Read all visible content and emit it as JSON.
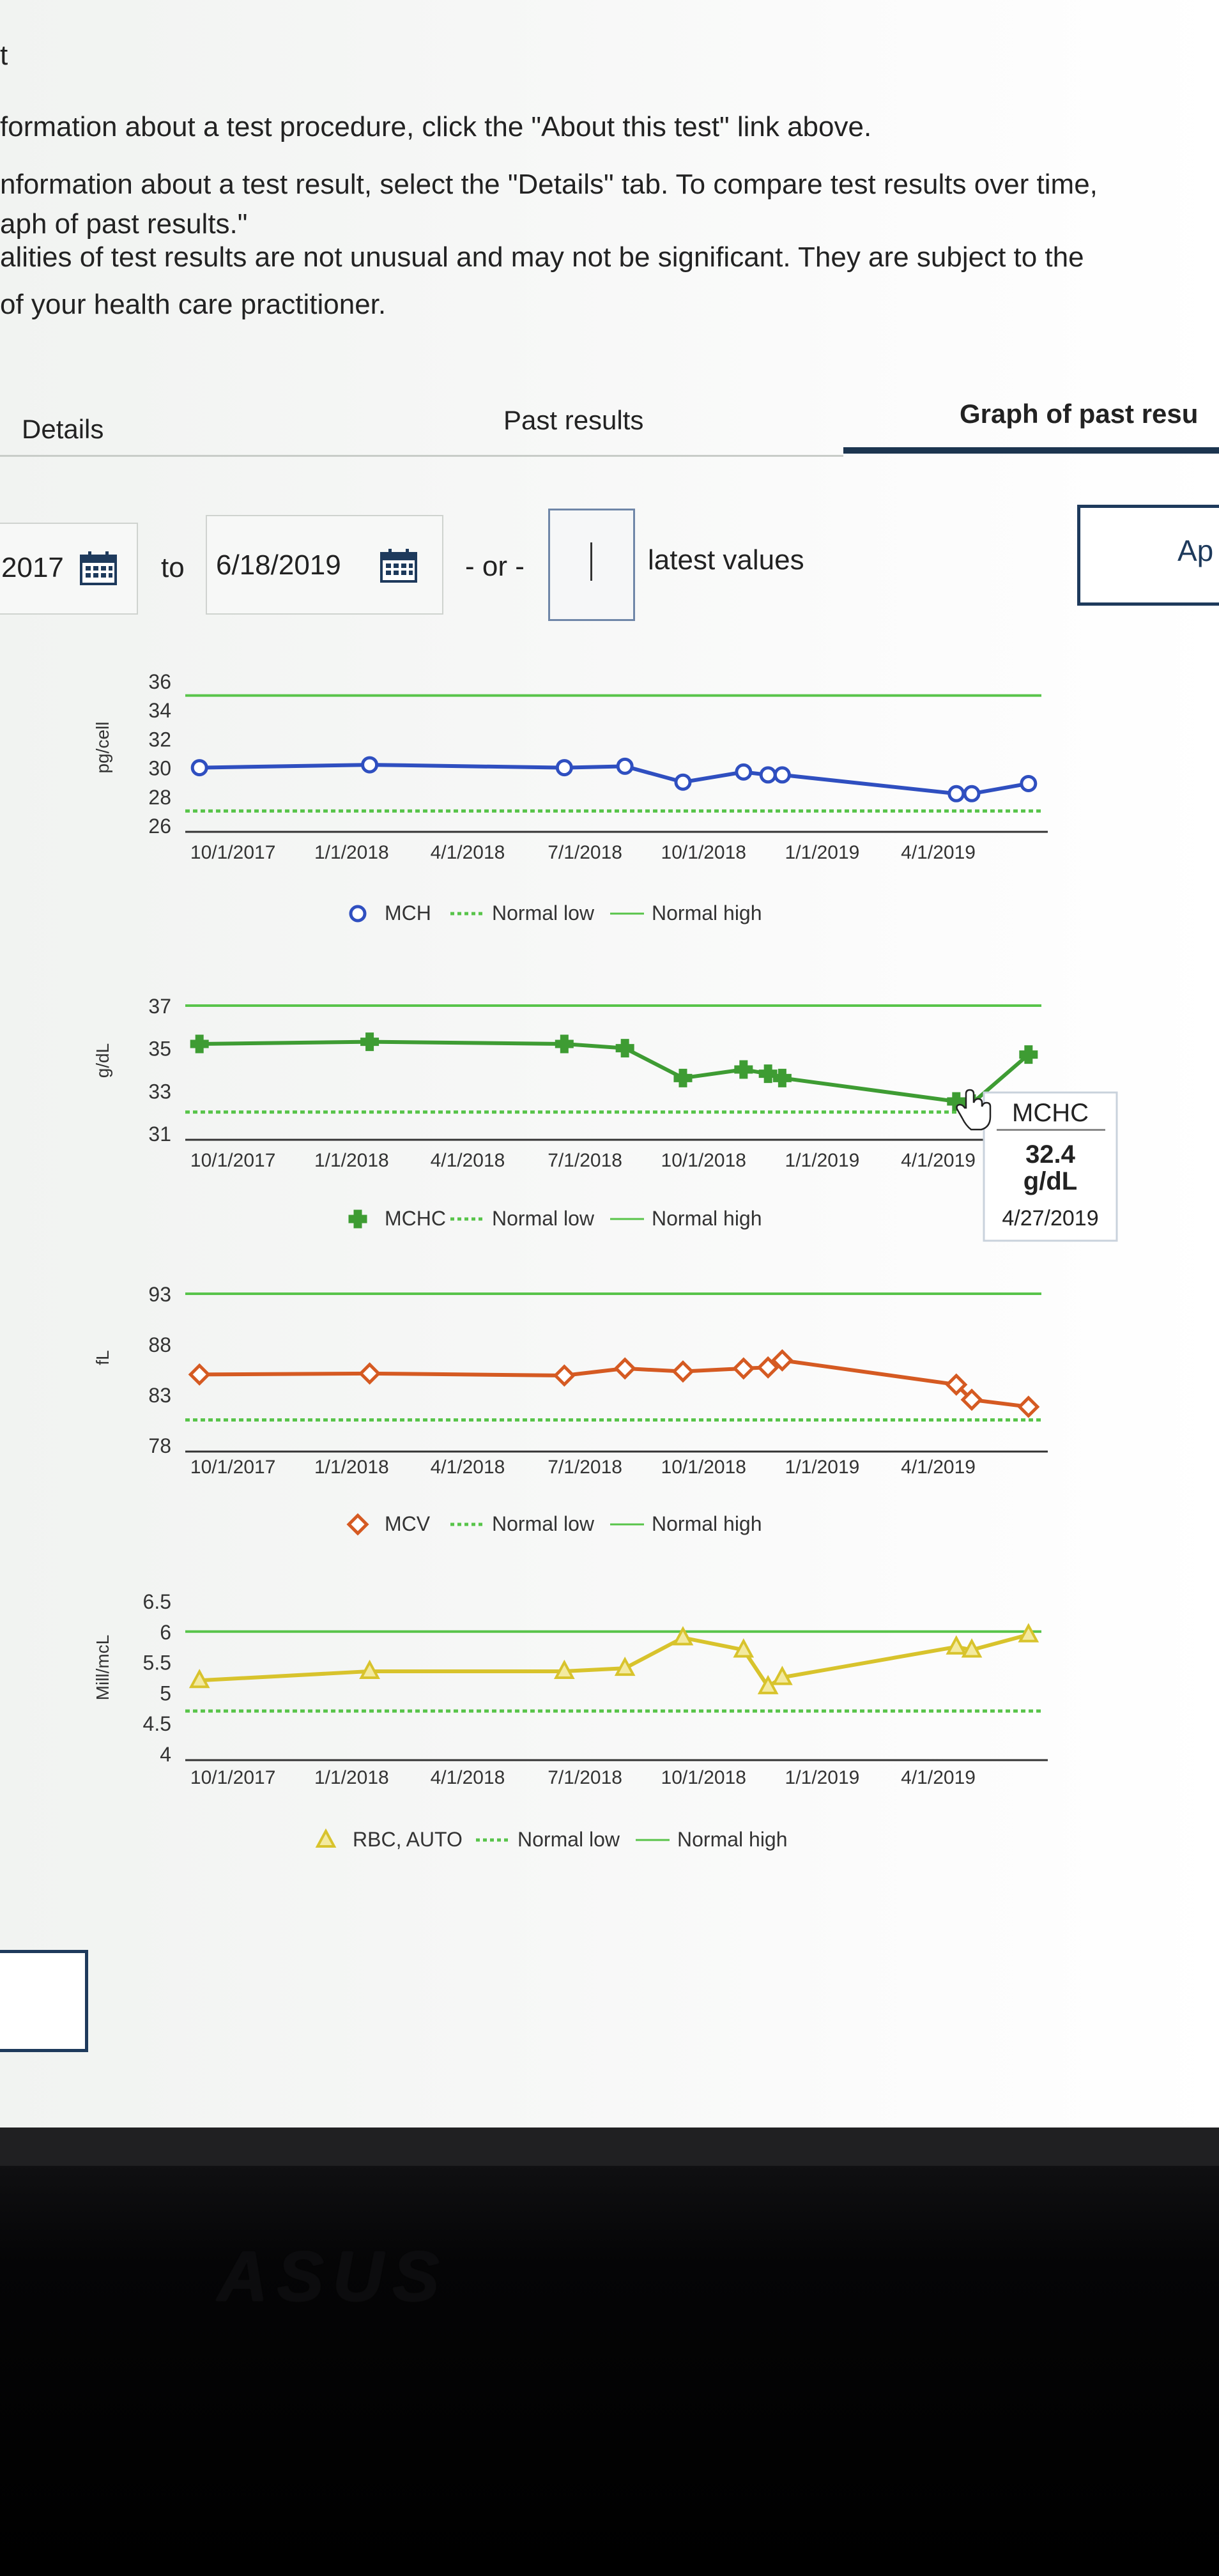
{
  "intro": {
    "line1": "t",
    "line2": "formation about a test procedure, click the \"About this test\" link above.",
    "line3": "nformation about a test result, select the \"Details\" tab. To compare test results over time,",
    "line4": "aph of past results.\"",
    "line5": "alities of test results are not unusual and may not be significant. They are subject to the",
    "line6": " of your health care practitioner."
  },
  "tabs": {
    "details": "Details",
    "past_results": "Past results",
    "graph": "Graph of past resu"
  },
  "filter": {
    "from_date": "2017",
    "to_label": "to",
    "to_date": "6/18/2019",
    "or_label": "- or -",
    "latest_value": "",
    "latest_label": "latest values",
    "apply_label": "Ap"
  },
  "tooltip": {
    "series": "MCHC",
    "value": "32.4",
    "unit": "g/dL",
    "date": "4/27/2019"
  },
  "brand_logo": "ASUS",
  "colors": {
    "mch": "#2f4fc0",
    "mchc": "#3e9c33",
    "mcv": "#d55a22",
    "rbc": "#d8c32c",
    "normal_low": "#58c44a",
    "normal_high": "#58c44a",
    "active_tab": "#1c3550"
  },
  "chart_data": [
    {
      "type": "line",
      "ylabel": "pg/cell",
      "yticks": [
        26,
        28,
        30,
        32,
        34,
        36
      ],
      "ylim": [
        26,
        36
      ],
      "xticks": [
        "10/1/2017",
        "1/1/2018",
        "4/1/2018",
        "7/1/2018",
        "10/1/2018",
        "1/1/2019",
        "4/1/2019"
      ],
      "grid": false,
      "legend_position": "bottom",
      "series": [
        {
          "name": "MCH",
          "x": [
            "2017-09-05",
            "2018-01-15",
            "2018-06-15",
            "2018-08-01",
            "2018-09-15",
            "2018-11-01",
            "2018-11-20",
            "2018-12-01",
            "2019-04-15",
            "2019-04-27",
            "2019-06-10"
          ],
          "values": [
            30.0,
            30.2,
            30.0,
            30.1,
            29.0,
            29.7,
            29.5,
            29.5,
            28.2,
            28.2,
            28.9
          ]
        },
        {
          "name": "Normal low",
          "constant": 27.0
        },
        {
          "name": "Normal high",
          "constant": 35.0
        }
      ]
    },
    {
      "type": "line",
      "ylabel": "g/dL",
      "yticks": [
        31,
        33,
        35,
        37
      ],
      "ylim": [
        31,
        37
      ],
      "xticks": [
        "10/1/2017",
        "1/1/2018",
        "4/1/2018",
        "7/1/2018",
        "10/1/2018",
        "1/1/2019",
        "4/1/2019"
      ],
      "grid": false,
      "legend_position": "bottom",
      "series": [
        {
          "name": "MCHC",
          "x": [
            "2017-09-05",
            "2018-01-15",
            "2018-06-15",
            "2018-08-01",
            "2018-09-15",
            "2018-11-01",
            "2018-11-20",
            "2018-12-01",
            "2019-04-15",
            "2019-04-27",
            "2019-06-10"
          ],
          "values": [
            35.2,
            35.3,
            35.2,
            35.0,
            33.6,
            34.0,
            33.8,
            33.6,
            32.5,
            32.4,
            34.7
          ]
        },
        {
          "name": "Normal low",
          "constant": 32.0
        },
        {
          "name": "Normal high",
          "constant": 37.0
        }
      ]
    },
    {
      "type": "line",
      "ylabel": "fL",
      "yticks": [
        78,
        83,
        88,
        93
      ],
      "ylim": [
        78,
        93
      ],
      "xticks": [
        "10/1/2017",
        "1/1/2018",
        "4/1/2018",
        "7/1/2018",
        "10/1/2018",
        "1/1/2019",
        "4/1/2019"
      ],
      "grid": false,
      "legend_position": "bottom",
      "series": [
        {
          "name": "MCV",
          "x": [
            "2017-09-05",
            "2018-01-15",
            "2018-06-15",
            "2018-08-01",
            "2018-09-15",
            "2018-11-01",
            "2018-11-20",
            "2018-12-01",
            "2019-04-15",
            "2019-04-27",
            "2019-06-10"
          ],
          "values": [
            85.0,
            85.1,
            84.9,
            85.6,
            85.3,
            85.6,
            85.7,
            86.4,
            84.0,
            82.5,
            81.8
          ]
        },
        {
          "name": "Normal low",
          "constant": 80.5
        },
        {
          "name": "Normal high",
          "constant": 93.0
        }
      ]
    },
    {
      "type": "line",
      "ylabel": "Mill/mcL",
      "yticks": [
        4,
        4.5,
        5,
        5.5,
        6,
        6.5
      ],
      "ylim": [
        4,
        6.5
      ],
      "xticks": [
        "10/1/2017",
        "1/1/2018",
        "4/1/2018",
        "7/1/2018",
        "10/1/2018",
        "1/1/2019",
        "4/1/2019"
      ],
      "grid": false,
      "legend_position": "bottom",
      "series": [
        {
          "name": "RBC, AUTO",
          "x": [
            "2017-09-05",
            "2018-01-15",
            "2018-06-15",
            "2018-08-01",
            "2018-09-15",
            "2018-11-01",
            "2018-11-20",
            "2018-12-01",
            "2019-04-15",
            "2019-04-27",
            "2019-06-10"
          ],
          "values": [
            5.2,
            5.35,
            5.35,
            5.4,
            5.9,
            5.7,
            5.1,
            5.25,
            5.75,
            5.7,
            5.95
          ]
        },
        {
          "name": "Normal low",
          "constant": 4.7
        },
        {
          "name": "Normal high",
          "constant": 6.0
        }
      ]
    }
  ]
}
